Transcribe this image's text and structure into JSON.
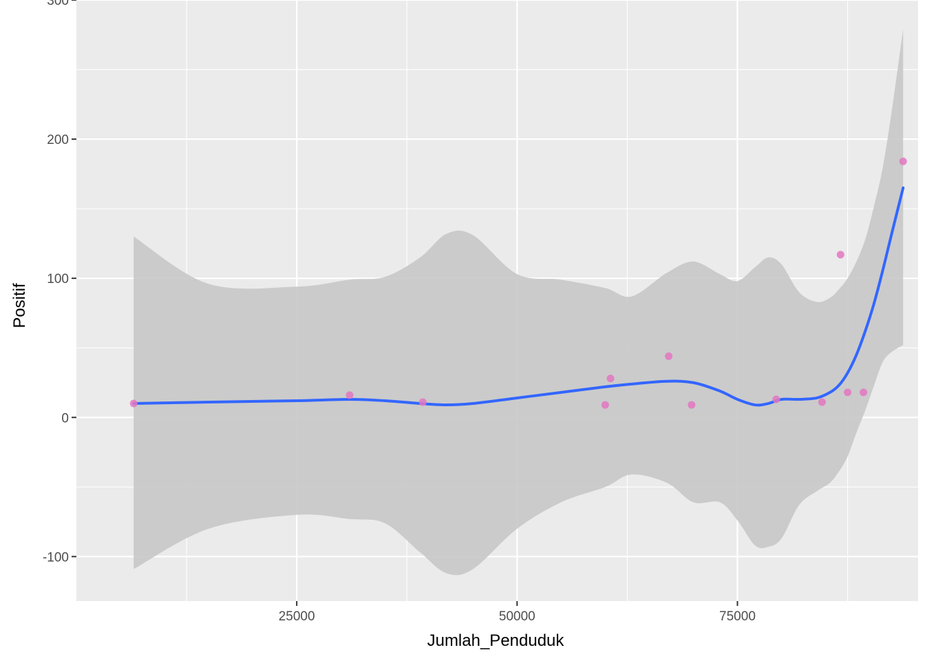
{
  "chart_data": {
    "type": "scatter",
    "title": "",
    "xlabel": "Jumlah_Penduduk",
    "ylabel": "Positif",
    "xlim": [
      0,
      95500
    ],
    "ylim": [
      -132,
      300
    ],
    "x_ticks": [
      25000,
      50000,
      75000
    ],
    "x_tick_labels": [
      "25000",
      "50000",
      "75000"
    ],
    "x_minor_ticks": [
      12500,
      37500,
      62500,
      87500
    ],
    "y_ticks": [
      -100,
      0,
      100,
      200,
      300
    ],
    "y_tick_labels": [
      "-100",
      "0",
      "100",
      "200",
      "300"
    ],
    "y_minor_ticks": [
      -50,
      50,
      150,
      250
    ],
    "grid": true,
    "colors": {
      "panel": "#ebebeb",
      "grid": "#ffffff",
      "points": "#e377c2",
      "smooth_line": "#3366ff",
      "confidence_band": "#c8c8c8"
    },
    "points": [
      {
        "x": 6500,
        "y": 10
      },
      {
        "x": 31000,
        "y": 16
      },
      {
        "x": 39300,
        "y": 11
      },
      {
        "x": 60000,
        "y": 9
      },
      {
        "x": 60600,
        "y": 28
      },
      {
        "x": 67200,
        "y": 44
      },
      {
        "x": 69800,
        "y": 9
      },
      {
        "x": 79400,
        "y": 13
      },
      {
        "x": 84600,
        "y": 11
      },
      {
        "x": 86700,
        "y": 117
      },
      {
        "x": 87500,
        "y": 18
      },
      {
        "x": 89300,
        "y": 18
      },
      {
        "x": 93800,
        "y": 184
      }
    ],
    "smooth": {
      "method": "loess",
      "x": [
        6500,
        15000,
        25000,
        31000,
        35000,
        39000,
        42000,
        45000,
        50000,
        55000,
        60000,
        63000,
        67000,
        70000,
        73000,
        75000,
        77000,
        78500,
        80000,
        82000,
        84000,
        85500,
        86500,
        87500,
        88500,
        89500,
        90500,
        91500,
        92500,
        93800
      ],
      "y": [
        10,
        11,
        12,
        13,
        12,
        10,
        9,
        10,
        14,
        18,
        22,
        24,
        26,
        25,
        19,
        13,
        9,
        10,
        13,
        13,
        14,
        18,
        23,
        32,
        45,
        62,
        82,
        106,
        132,
        165
      ],
      "upper": [
        130,
        96,
        94,
        99,
        101,
        115,
        132,
        131,
        103,
        99,
        93,
        87,
        104,
        112,
        103,
        98,
        108,
        115,
        110,
        90,
        83,
        86,
        92,
        100,
        112,
        128,
        152,
        180,
        220,
        279
      ],
      "lower": [
        -109,
        -80,
        -70,
        -73,
        -76,
        -97,
        -112,
        -109,
        -80,
        -61,
        -50,
        -41,
        -47,
        -61,
        -61,
        -74,
        -92,
        -93,
        -87,
        -63,
        -53,
        -47,
        -39,
        -28,
        -11,
        5,
        23,
        40,
        47,
        52
      ]
    }
  }
}
